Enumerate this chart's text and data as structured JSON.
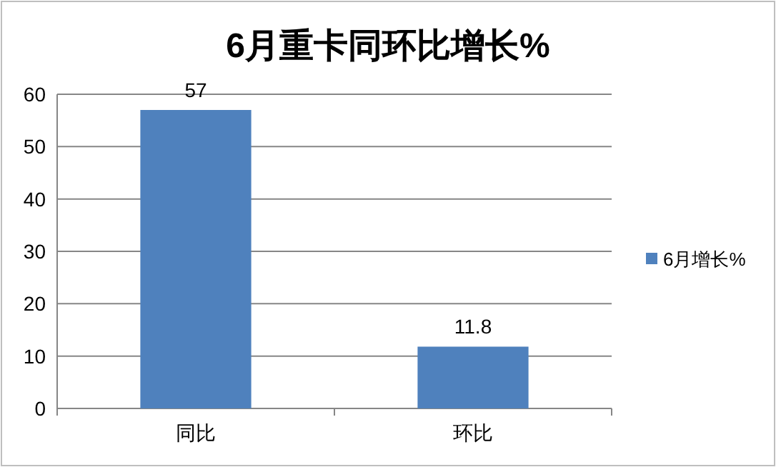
{
  "chart_data": {
    "type": "bar",
    "title": "6月重卡同环比增长%",
    "categories": [
      "同比",
      "环比"
    ],
    "series": [
      {
        "name": "6月增长%",
        "color": "#4f81bd",
        "values": [
          57,
          11.8
        ]
      }
    ],
    "ylim": [
      0,
      60
    ],
    "yticks": [
      0,
      10,
      20,
      30,
      40,
      50,
      60
    ],
    "grid": "y",
    "legend": "right",
    "data_labels": true
  }
}
